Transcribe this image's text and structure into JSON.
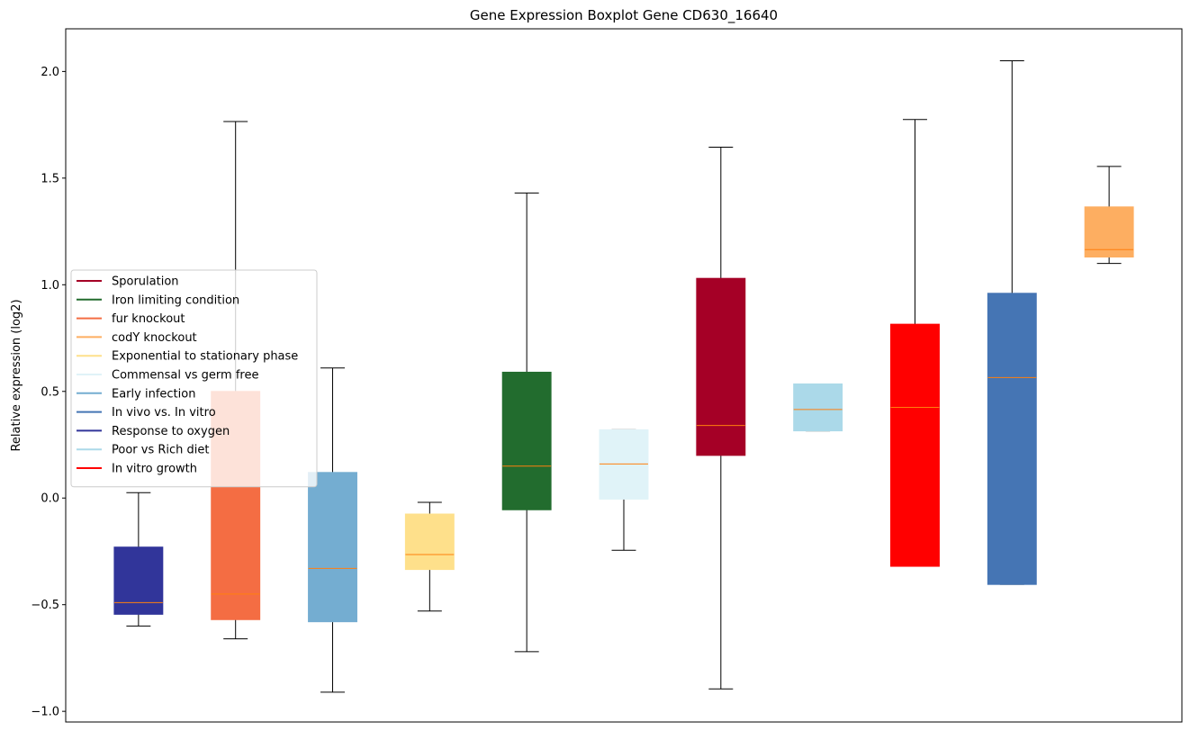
{
  "chart_data": {
    "type": "box",
    "title": "Gene Expression Boxplot Gene CD630_16640",
    "xlabel": "",
    "ylabel": "Relative expression (log2)",
    "ylim": [
      -1.05,
      2.2
    ],
    "yticks": [
      -1.0,
      -0.5,
      0.0,
      0.5,
      1.0,
      1.5,
      2.0
    ],
    "ytick_labels": [
      "−1.0",
      "−0.5",
      "0.0",
      "0.5",
      "1.0",
      "1.5",
      "2.0"
    ],
    "grid": false,
    "legend_position": "center-left",
    "median_color": "#ff7f0e",
    "boxes": [
      {
        "group": "Response to oxygen",
        "color": "#31359a",
        "whisker_low": -0.6,
        "q1": -0.545,
        "median": -0.49,
        "q3": -0.23,
        "whisker_high": 0.025
      },
      {
        "group": "fur knockout",
        "color": "#f46d43",
        "whisker_low": -0.66,
        "q1": -0.57,
        "median": -0.45,
        "q3": 0.5,
        "whisker_high": 1.765
      },
      {
        "group": "Early infection",
        "color": "#74add1",
        "whisker_low": -0.91,
        "q1": -0.58,
        "median": -0.33,
        "q3": 0.12,
        "whisker_high": 0.61
      },
      {
        "group": "Exponential to stationary phase",
        "color": "#fee08b",
        "whisker_low": -0.53,
        "q1": -0.335,
        "median": -0.265,
        "q3": -0.075,
        "whisker_high": -0.02
      },
      {
        "group": "Iron limiting condition",
        "color": "#226c2e",
        "whisker_low": -0.72,
        "q1": -0.055,
        "median": 0.15,
        "q3": 0.59,
        "whisker_high": 1.43
      },
      {
        "group": "Commensal vs germ free",
        "color": "#e0f3f8",
        "whisker_low": -0.245,
        "q1": -0.005,
        "median": 0.16,
        "q3": 0.32,
        "whisker_high": 0.32
      },
      {
        "group": "Sporulation",
        "color": "#a50026",
        "whisker_low": -0.895,
        "q1": 0.2,
        "median": 0.34,
        "q3": 1.03,
        "whisker_high": 1.645
      },
      {
        "group": "Poor vs Rich diet",
        "color": "#abd9e9",
        "whisker_low": 0.315,
        "q1": 0.315,
        "median": 0.415,
        "q3": 0.535,
        "whisker_high": 0.535
      },
      {
        "group": "In vitro growth",
        "color": "#ff0000",
        "whisker_low": -0.32,
        "q1": -0.32,
        "median": 0.425,
        "q3": 0.815,
        "whisker_high": 1.775
      },
      {
        "group": "In vivo vs. In vitro",
        "color": "#4575b4",
        "whisker_low": -0.405,
        "q1": -0.405,
        "median": 0.565,
        "q3": 0.96,
        "whisker_high": 2.05
      },
      {
        "group": "codY knockout",
        "color": "#fdae61",
        "whisker_low": 1.1,
        "q1": 1.13,
        "median": 1.165,
        "q3": 1.365,
        "whisker_high": 1.555
      }
    ],
    "legend": [
      {
        "label": "Sporulation",
        "color": "#a50026"
      },
      {
        "label": "Iron limiting condition",
        "color": "#226c2e"
      },
      {
        "label": "fur knockout",
        "color": "#f46d43"
      },
      {
        "label": "codY knockout",
        "color": "#fdae61"
      },
      {
        "label": "Exponential to stationary phase",
        "color": "#fee08b"
      },
      {
        "label": "Commensal vs germ free",
        "color": "#e0f3f8"
      },
      {
        "label": "Early infection",
        "color": "#74add1"
      },
      {
        "label": "In vivo vs. In vitro",
        "color": "#4575b4"
      },
      {
        "label": "Response to oxygen",
        "color": "#31359a"
      },
      {
        "label": "Poor vs Rich diet",
        "color": "#abd9e9"
      },
      {
        "label": "In vitro growth",
        "color": "#ff0000"
      }
    ]
  }
}
